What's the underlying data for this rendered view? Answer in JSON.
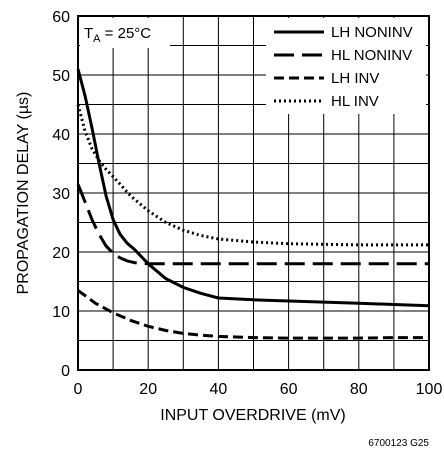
{
  "chart_data": {
    "type": "line",
    "title": "",
    "xlabel": "INPUT OVERDRIVE (mV)",
    "ylabel": "PROPAGATION DELAY (µs)",
    "xlim": [
      0,
      100
    ],
    "ylim": [
      0,
      60
    ],
    "x_ticks": [
      0,
      20,
      40,
      60,
      80,
      100
    ],
    "y_ticks": [
      0,
      10,
      20,
      30,
      40,
      50,
      60
    ],
    "grid": true,
    "legend_position": "top-right",
    "annotation": {
      "main": "T",
      "sub": "A",
      "rest": " = 25°C"
    },
    "figure_id": "6700123 G25",
    "series": [
      {
        "name": "LH NONINV",
        "style": "solid",
        "x": [
          0,
          2,
          4,
          6,
          8,
          10,
          12,
          14,
          16,
          20,
          25,
          30,
          35,
          40,
          50,
          60,
          70,
          80,
          90,
          100
        ],
        "y": [
          51,
          46.5,
          41,
          35,
          29.5,
          25.5,
          23,
          21.5,
          20.5,
          18,
          15.5,
          14,
          13,
          12.2,
          11.9,
          11.7,
          11.5,
          11.3,
          11.1,
          10.9
        ]
      },
      {
        "name": "HL NONINV",
        "style": "longdash",
        "x": [
          0,
          2,
          4,
          6,
          8,
          10,
          12,
          14,
          16,
          18,
          20,
          30,
          40,
          60,
          80,
          100
        ],
        "y": [
          31.5,
          28.5,
          25.5,
          23,
          21,
          19.8,
          19,
          18.5,
          18.2,
          18.1,
          18,
          18,
          18,
          18,
          18,
          18
        ]
      },
      {
        "name": "LH INV",
        "style": "dash",
        "x": [
          0,
          5,
          10,
          15,
          20,
          25,
          30,
          35,
          40,
          50,
          60,
          70,
          80,
          90,
          100
        ],
        "y": [
          13.5,
          11.3,
          9.7,
          8.4,
          7.4,
          6.7,
          6.2,
          5.9,
          5.7,
          5.5,
          5.4,
          5.4,
          5.4,
          5.5,
          5.5
        ]
      },
      {
        "name": "HL INV",
        "style": "dotted",
        "x": [
          0,
          2,
          4,
          6,
          8,
          10,
          15,
          20,
          25,
          30,
          35,
          40,
          50,
          60,
          70,
          80,
          90,
          100
        ],
        "y": [
          45,
          40.5,
          37.5,
          35.5,
          34,
          32.8,
          29.5,
          27,
          25,
          23.7,
          22.8,
          22.2,
          21.7,
          21.4,
          21.3,
          21.2,
          21.2,
          21.2
        ]
      }
    ]
  }
}
